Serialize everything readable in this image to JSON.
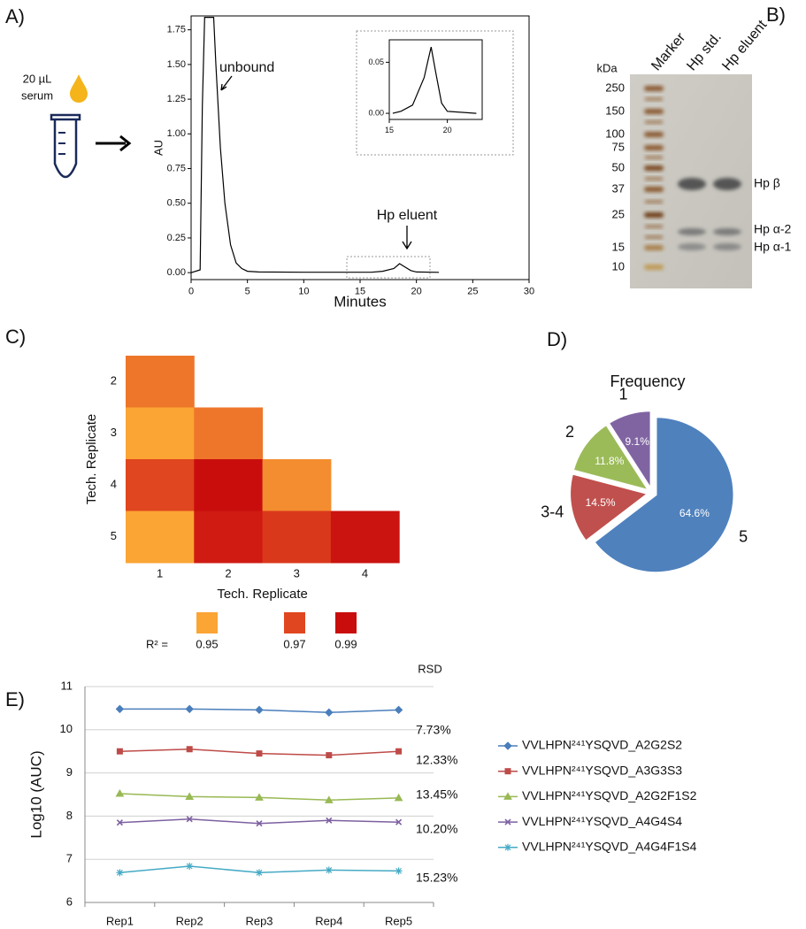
{
  "panel_labels": [
    "A)",
    "B)",
    "C)",
    "D)",
    "E)"
  ],
  "schematic": {
    "volume": "20 µL",
    "sample": "serum"
  },
  "gel": {
    "unit": "kDa",
    "lanes": [
      "Marker",
      "Hp std.",
      "Hp eluent"
    ],
    "ladder": [
      250,
      150,
      100,
      75,
      50,
      37,
      25,
      15,
      10
    ],
    "bands": [
      "Hp β",
      "Hp α-2",
      "Hp α-1"
    ]
  },
  "chart_data": [
    {
      "type": "line",
      "xlabel": "Minutes",
      "ylabel": "AU",
      "color": "#000000",
      "x": [
        0,
        0.8,
        1.0,
        1.2,
        2.0,
        2.2,
        2.6,
        3.0,
        3.5,
        4.0,
        4.5,
        5.0,
        6.0,
        10.0,
        16.0,
        17.0,
        18.0,
        18.5,
        19.0,
        19.5,
        20.0,
        22.0
      ],
      "values": [
        0,
        0.02,
        1.2,
        1.84,
        1.84,
        1.5,
        0.9,
        0.5,
        0.2,
        0.07,
        0.03,
        0.01,
        0.005,
        0.003,
        0.003,
        0.01,
        0.03,
        0.065,
        0.04,
        0.015,
        0.005,
        0.002
      ],
      "xlim": [
        0,
        30
      ],
      "xticks": [
        0,
        5,
        10,
        15,
        20,
        25,
        30
      ],
      "ylim": [
        -0.05,
        1.85
      ],
      "yticks": [
        {
          "value": 0,
          "label": "0.00"
        },
        {
          "value": 0.25,
          "label": "0.25"
        },
        {
          "value": 0.5,
          "label": "0.50"
        },
        {
          "value": 0.75,
          "label": "0.75"
        },
        {
          "value": 1,
          "label": "1.00"
        },
        {
          "value": 1.25,
          "label": "1.25"
        },
        {
          "value": 1.5,
          "label": "1.50"
        },
        {
          "value": 1.75,
          "label": "1.75"
        }
      ],
      "annotations": [
        "unbound",
        "Hp eluent"
      ]
    },
    {
      "type": "line",
      "color": "#000000",
      "x": [
        15.3,
        16,
        17,
        18,
        18.3,
        18.6,
        19,
        19.5,
        20,
        22.5
      ],
      "values": [
        0.0,
        0.002,
        0.008,
        0.035,
        0.05,
        0.065,
        0.04,
        0.01,
        0.002,
        0.0
      ],
      "xlim": [
        15,
        23
      ],
      "xticks": [
        15,
        20
      ],
      "ylim": [
        -0.006,
        0.072
      ],
      "yticks": [
        {
          "value": 0,
          "label": "0.00"
        },
        {
          "value": 0.05,
          "label": "0.05"
        }
      ]
    },
    {
      "type": "heatmap",
      "xlabel": "Tech. Replicate",
      "ylabel": "Tech. Replicate",
      "rows": [
        "2",
        "3",
        "4",
        "5"
      ],
      "columns": [
        "1",
        "2",
        "3",
        "4"
      ],
      "values": [
        [
          0.96
        ],
        [
          0.95,
          0.96
        ],
        [
          0.97,
          0.99,
          0.955
        ],
        [
          0.95,
          0.985,
          0.975,
          0.988
        ]
      ],
      "legend_title": "R² =",
      "colorscale": [
        {
          "value": 0.95,
          "color": "#fba534"
        },
        {
          "value": 0.97,
          "color": "#e0461f"
        },
        {
          "value": 0.99,
          "color": "#c90d0d"
        }
      ]
    },
    {
      "type": "pie",
      "title": "Frequency",
      "categories": [
        "5",
        "3-4",
        "2",
        "1"
      ],
      "values": [
        64.6,
        14.5,
        11.8,
        9.1
      ],
      "value_labels": [
        "64.6%",
        "14.5%",
        "11.8%",
        "9.1%"
      ],
      "colors": [
        "#4f81bd",
        "#c0504d",
        "#9bbb59",
        "#8064a2"
      ]
    },
    {
      "type": "line",
      "ylabel": "Log10 (AUC)",
      "grid": true,
      "categories": [
        "Rep1",
        "Rep2",
        "Rep3",
        "Rep4",
        "Rep5"
      ],
      "ylim": [
        6,
        11
      ],
      "yticks": [
        6,
        7,
        8,
        9,
        10,
        11
      ],
      "rsd_title": "RSD",
      "rsd_labels": [
        "7.73%",
        "12.33%",
        "13.45%",
        "10.20%",
        "15.23%"
      ],
      "series": [
        {
          "name": "VVLHPN²⁴¹YSQVD_A2G2S2",
          "color": "#4a7ebb",
          "marker": "diamond",
          "values": [
            10.48,
            10.48,
            10.46,
            10.4,
            10.46
          ]
        },
        {
          "name": "VVLHPN²⁴¹YSQVD_A3G3S3",
          "color": "#be4b48",
          "marker": "square",
          "values": [
            9.5,
            9.55,
            9.45,
            9.41,
            9.5
          ]
        },
        {
          "name": "VVLHPN²⁴¹YSQVD_A2G2F1S2",
          "color": "#98b954",
          "marker": "triangle",
          "values": [
            8.52,
            8.45,
            8.43,
            8.37,
            8.42
          ]
        },
        {
          "name": "VVLHPN²⁴¹YSQVD_A4G4S4",
          "color": "#7d60a0",
          "marker": "cross",
          "values": [
            7.85,
            7.93,
            7.83,
            7.9,
            7.86
          ]
        },
        {
          "name": "VVLHPN²⁴¹YSQVD_A4G4F1S4",
          "color": "#46aac5",
          "marker": "star",
          "values": [
            6.69,
            6.84,
            6.69,
            6.75,
            6.73
          ]
        }
      ]
    }
  ]
}
